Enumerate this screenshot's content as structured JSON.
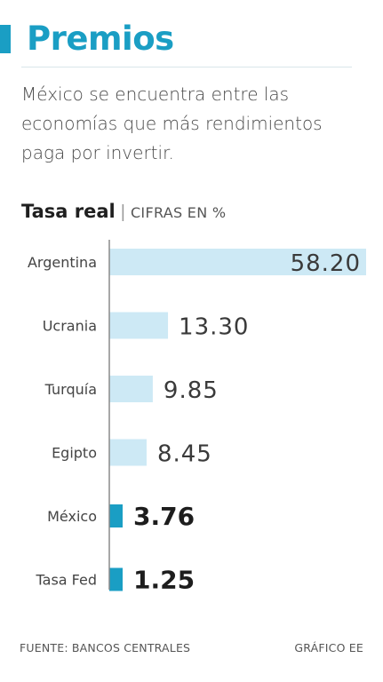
{
  "header": {
    "title": "Premios",
    "subtitle": "México se encuentra entre las economías que más rendimientos paga por invertir."
  },
  "chart_data": {
    "type": "bar",
    "orientation": "horizontal",
    "title": "Tasa real",
    "units": "CIFRAS EN %",
    "categories": [
      "Argentina",
      "Ucrania",
      "Turquía",
      "Egipto",
      "México",
      "Tasa Fed"
    ],
    "values": [
      58.2,
      13.3,
      9.85,
      8.45,
      3.76,
      1.25
    ],
    "value_labels": [
      "58.20",
      "13.30",
      "9.85",
      "8.45",
      "3.76",
      "1.25"
    ],
    "highlighted": [
      "México",
      "Tasa Fed"
    ],
    "xlim": [
      0,
      58.2
    ],
    "grid": false,
    "legend": "none"
  },
  "footer": {
    "source": "FUENTE: BANCOS CENTRALES",
    "credit": "GRÁFICO EE"
  },
  "colors": {
    "accent": "#1a9ec4",
    "bar_light": "#cde9f5",
    "axis": "#8a8a8a",
    "label": "#444444",
    "value_light": "#3a3a3a",
    "value_bold": "#1d1d1d"
  }
}
